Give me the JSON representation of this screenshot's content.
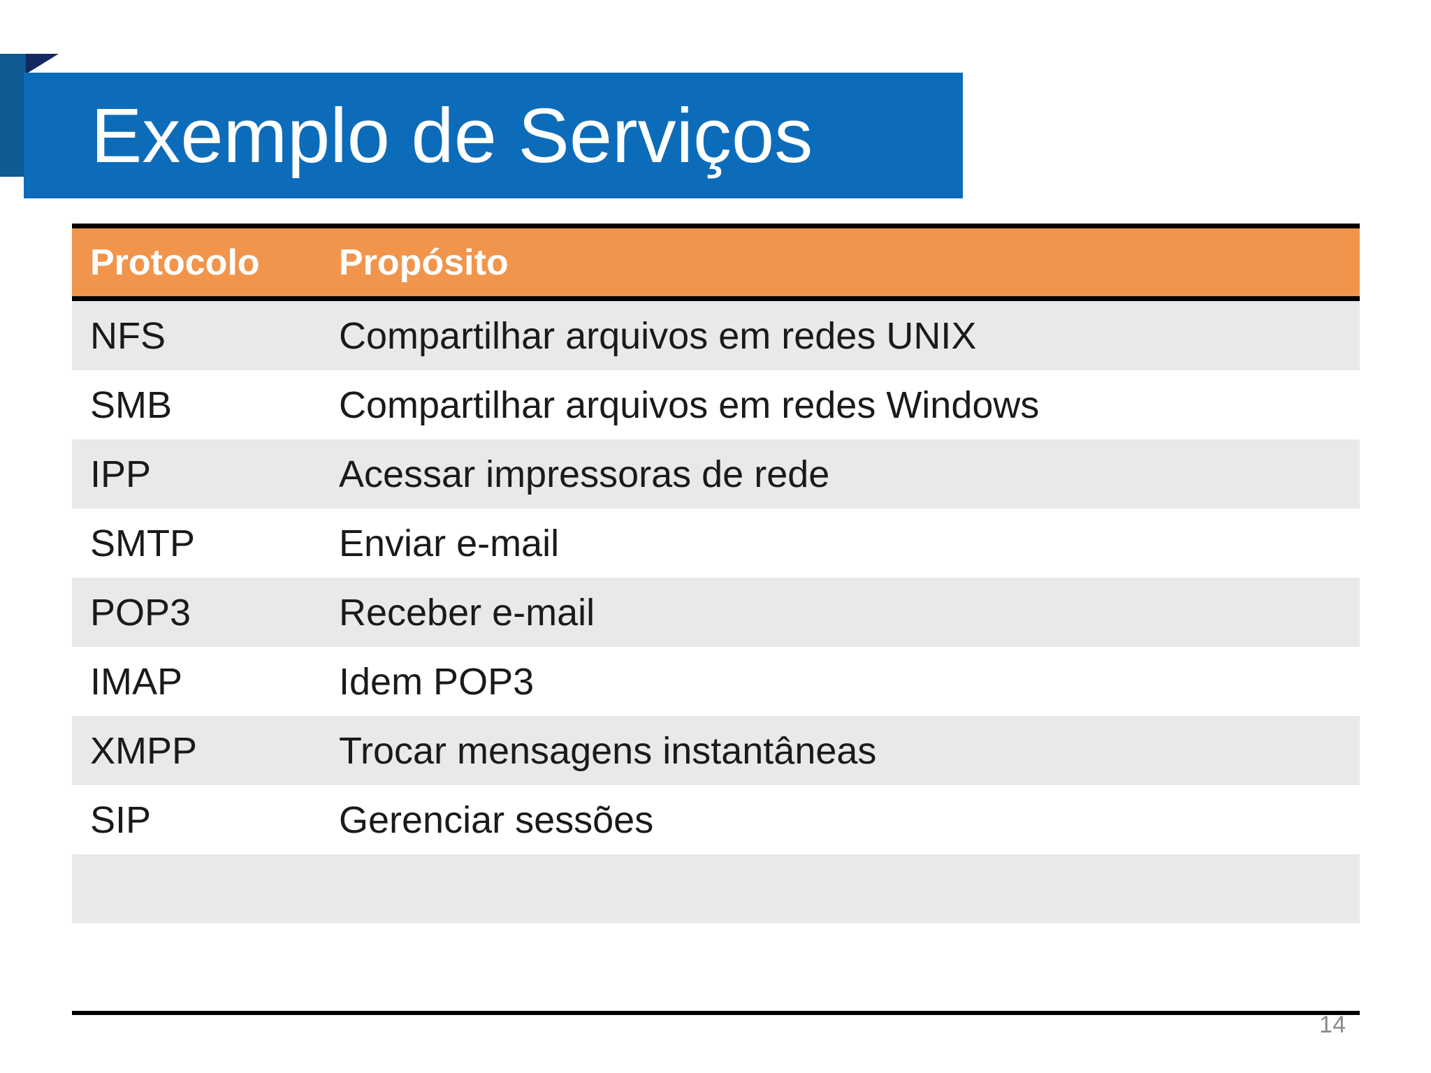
{
  "slide": {
    "title": "Exemplo de Serviços",
    "page_number": "14"
  },
  "table": {
    "columns": [
      "Protocolo",
      "Propósito"
    ],
    "rows": [
      {
        "protocol": "NFS",
        "purpose": "Compartilhar arquivos em redes UNIX"
      },
      {
        "protocol": "SMB",
        "purpose": "Compartilhar arquivos em redes Windows"
      },
      {
        "protocol": "IPP",
        "purpose": "Acessar impressoras de rede"
      },
      {
        "protocol": "SMTP",
        "purpose": "Enviar e-mail"
      },
      {
        "protocol": "POP3",
        "purpose": "Receber e-mail"
      },
      {
        "protocol": "IMAP",
        "purpose": "Idem POP3"
      },
      {
        "protocol": "XMPP",
        "purpose": "Trocar mensagens instantâneas"
      },
      {
        "protocol": "SIP",
        "purpose": "Gerenciar sessões"
      },
      {
        "protocol": "",
        "purpose": ""
      }
    ]
  },
  "colors": {
    "banner_blue": "#0c6cba",
    "ribbon_tail_blue": "#0e5a92",
    "ribbon_fold_navy": "#13295f",
    "header_orange": "#f1954c",
    "row_gray": "#e9e9eb",
    "border_black": "#000000",
    "body_text": "#1a1a1a",
    "page_number_gray": "#8a8a8a"
  }
}
